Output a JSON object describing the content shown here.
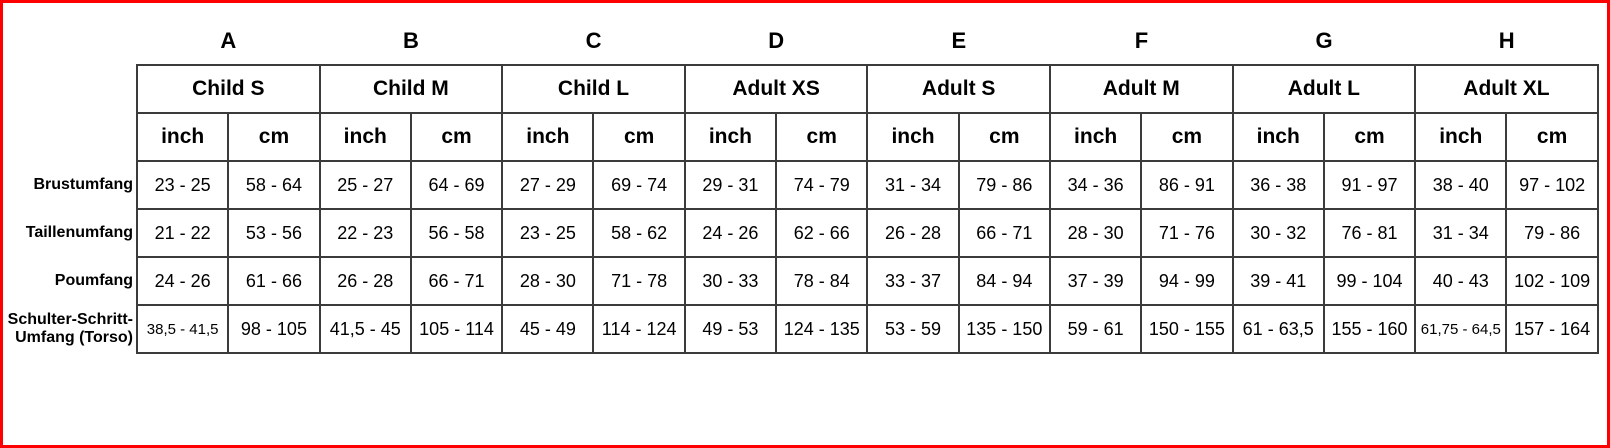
{
  "page": {
    "background": "#ffffff",
    "frame_color": "#fe0000"
  },
  "table": {
    "column_letters": [
      "A",
      "B",
      "C",
      "D",
      "E",
      "F",
      "G",
      "H"
    ],
    "size_groups": [
      {
        "letter": "A",
        "label": "Child S"
      },
      {
        "letter": "B",
        "label": "Child M"
      },
      {
        "letter": "C",
        "label": "Child L"
      },
      {
        "letter": "D",
        "label": "Adult XS"
      },
      {
        "letter": "E",
        "label": "Adult S"
      },
      {
        "letter": "F",
        "label": "Adult M"
      },
      {
        "letter": "G",
        "label": "Adult L"
      },
      {
        "letter": "H",
        "label": "Adult XL"
      }
    ],
    "units": [
      "inch",
      "cm"
    ],
    "measurement_rows": [
      {
        "label": "Brustumfang",
        "values": [
          "23 - 25",
          "58 - 64",
          "25 - 27",
          "64 - 69",
          "27 - 29",
          "69 - 74",
          "29 - 31",
          "74 - 79",
          "31 - 34",
          "79 - 86",
          "34 - 36",
          "86 - 91",
          "36 - 38",
          "91 - 97",
          "38 - 40",
          "97 - 102"
        ]
      },
      {
        "label": "Taillenumfang",
        "values": [
          "21 - 22",
          "53 - 56",
          "22 - 23",
          "56 - 58",
          "23 - 25",
          "58 - 62",
          "24 - 26",
          "62 - 66",
          "26 - 28",
          "66 - 71",
          "28 - 30",
          "71 - 76",
          "30 - 32",
          "76 - 81",
          "31 - 34",
          "79 - 86"
        ]
      },
      {
        "label": "Poumfang",
        "values": [
          "24 - 26",
          "61 - 66",
          "26 - 28",
          "66 - 71",
          "28 - 30",
          "71 - 78",
          "30 - 33",
          "78 - 84",
          "33 - 37",
          "84 - 94",
          "37 - 39",
          "94 - 99",
          "39 - 41",
          "99 - 104",
          "40 - 43",
          "102 - 109"
        ]
      },
      {
        "label": "Schulter-Schritt-Umfang (Torso)",
        "values": [
          "38,5 - 41,5",
          "98 - 105",
          "41,5 - 45",
          "105 - 114",
          "45 - 49",
          "114 - 124",
          "49 - 53",
          "124 - 135",
          "53 - 59",
          "135 - 150",
          "59 - 61",
          "150 - 155",
          "61 - 63,5",
          "155 - 160",
          "61,75 - 64,5",
          "157 - 164"
        ]
      }
    ]
  }
}
